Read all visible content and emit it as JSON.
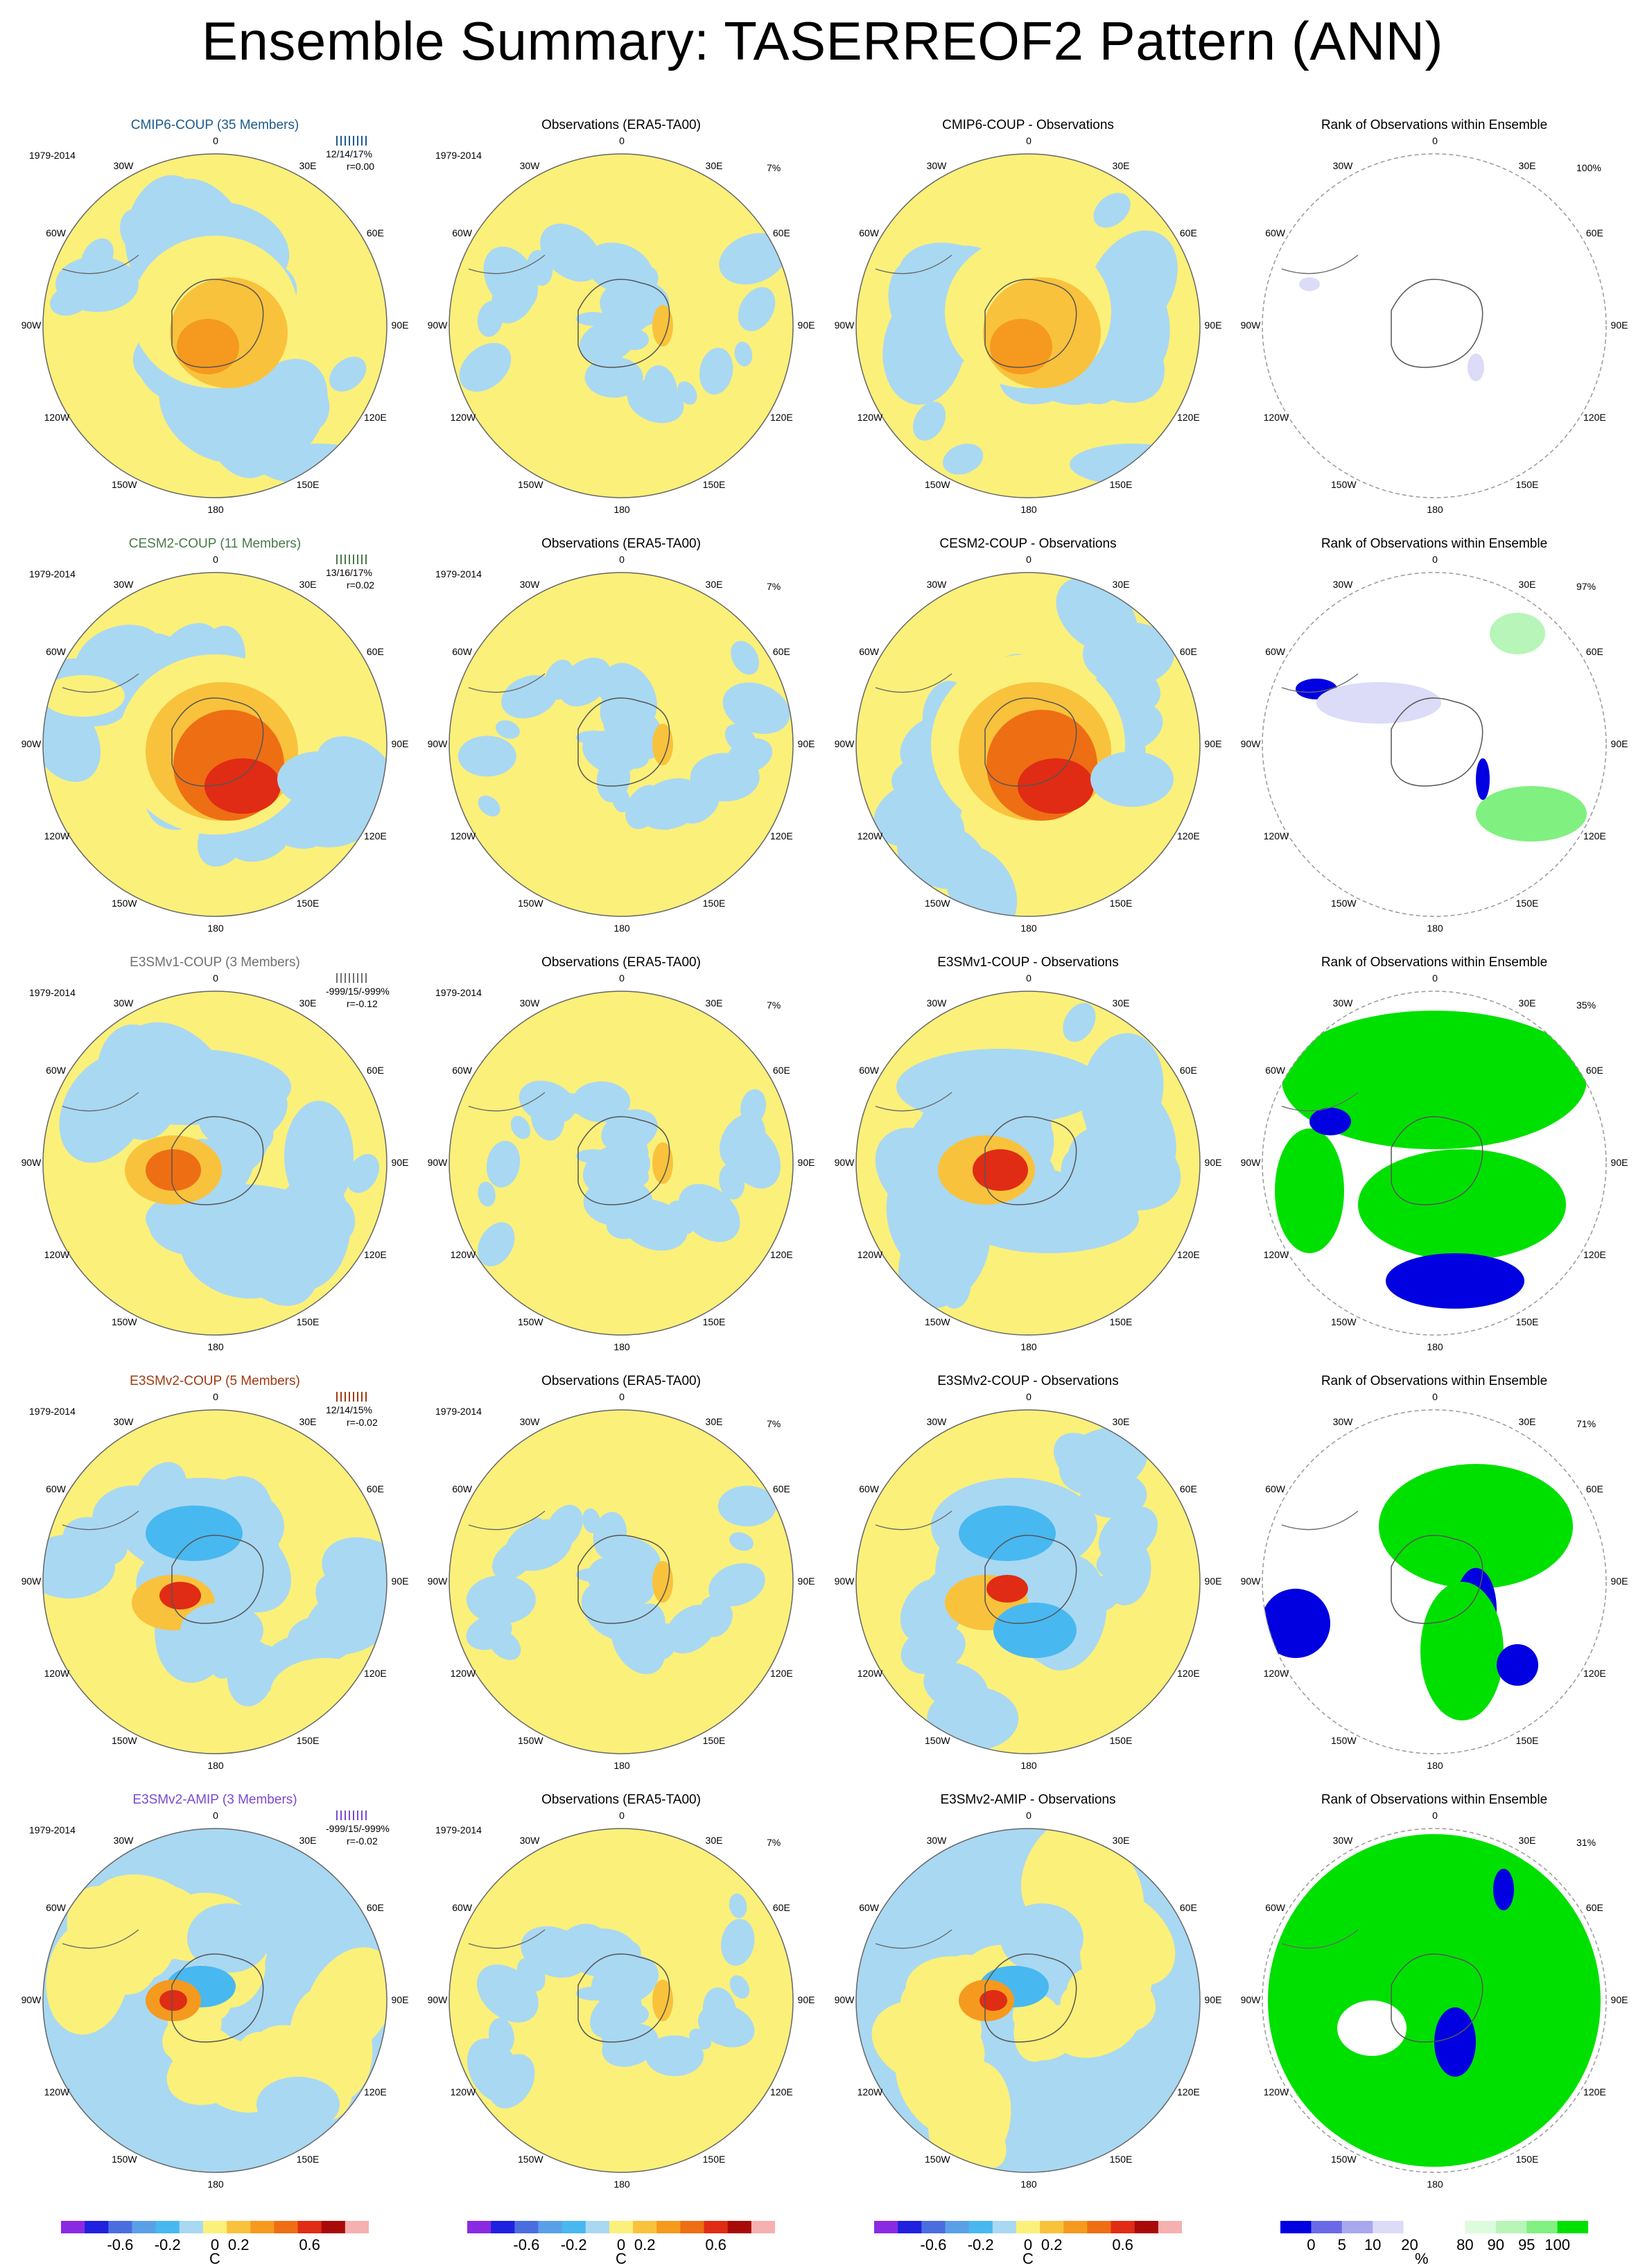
{
  "title": "Ensemble Summary: TASERREOF2 Pattern (ANN)",
  "colors": {
    "field_scale": [
      "#8a2be2",
      "#2020e0",
      "#4a6ee0",
      "#5aa0e8",
      "#48b8f0",
      "#a9d8f2",
      "#fbf07a",
      "#f9c23c",
      "#f59a1e",
      "#ee6e14",
      "#e02c14",
      "#a80a0a",
      "#f6b0b0"
    ],
    "rank_scale": [
      "#0000e0",
      "#6a6ae8",
      "#a8a8f0",
      "#dcdcf8",
      "#ffffff",
      "#ffffff",
      "#ddfbdd",
      "#b8f5b8",
      "#80f080",
      "#00e000"
    ],
    "title_cmip6": "#1e5a8a",
    "title_cesm2": "#4a7a4a",
    "title_e3smv1": "#707070",
    "title_e3smv2coup": "#a03a10",
    "title_e3smv2amip": "#7a4ad0"
  },
  "rows": [
    {
      "model_title": "CMIP6-COUP (35 Members)",
      "model_color_key": "title_cmip6",
      "period": "1979-2014",
      "stats": "12/14/17%",
      "corr": "r=0.00",
      "obs_title": "Observations (ERA5-TA00)",
      "obs_period": "1979-2014",
      "obs_pct": "7%",
      "diff_title": "CMIP6-COUP - Observations",
      "rank_title": "Rank of Observations within Ensemble",
      "rank_pct": "100%"
    },
    {
      "model_title": "CESM2-COUP (11 Members)",
      "model_color_key": "title_cesm2",
      "period": "1979-2014",
      "stats": "13/16/17%",
      "corr": "r=0.02",
      "obs_title": "Observations (ERA5-TA00)",
      "obs_period": "1979-2014",
      "obs_pct": "7%",
      "diff_title": "CESM2-COUP - Observations",
      "rank_title": "Rank of Observations within Ensemble",
      "rank_pct": "97%"
    },
    {
      "model_title": "E3SMv1-COUP (3 Members)",
      "model_color_key": "title_e3smv1",
      "period": "1979-2014",
      "stats": "-999/15/-999%",
      "corr": "r=-0.12",
      "obs_title": "Observations (ERA5-TA00)",
      "obs_period": "1979-2014",
      "obs_pct": "7%",
      "diff_title": "E3SMv1-COUP - Observations",
      "rank_title": "Rank of Observations within Ensemble",
      "rank_pct": "35%"
    },
    {
      "model_title": "E3SMv2-COUP (5 Members)",
      "model_color_key": "title_e3smv2coup",
      "period": "1979-2014",
      "stats": "12/14/15%",
      "corr": "r=-0.02",
      "obs_title": "Observations (ERA5-TA00)",
      "obs_period": "1979-2014",
      "obs_pct": "7%",
      "diff_title": "E3SMv2-COUP - Observations",
      "rank_title": "Rank of Observations within Ensemble",
      "rank_pct": "71%"
    },
    {
      "model_title": "E3SMv2-AMIP (3 Members)",
      "model_color_key": "title_e3smv2amip",
      "period": "1979-2014",
      "stats": "-999/15/-999%",
      "corr": "r=-0.02",
      "obs_title": "Observations (ERA5-TA00)",
      "obs_period": "1979-2014",
      "obs_pct": "7%",
      "diff_title": "E3SMv2-AMIP - Observations",
      "rank_title": "Rank of Observations within Ensemble",
      "rank_pct": "31%"
    }
  ],
  "lon_labels": [
    "0",
    "30E",
    "60E",
    "90E",
    "120E",
    "150E",
    "180",
    "150W",
    "120W",
    "90W",
    "60W",
    "30W"
  ],
  "field_colorbar": {
    "ticks": [
      "-0.6",
      "-0.2",
      "0",
      "0.2",
      "0.6"
    ],
    "unit": "C"
  },
  "rank_colorbar": {
    "ticks": [
      "0",
      "5",
      "10",
      "20",
      "80",
      "90",
      "95",
      "100"
    ],
    "unit": "%"
  },
  "chart_data": [
    {
      "type": "heatmap",
      "title": "Ensemble Summary: TASERREOF2 Pattern (ANN)",
      "projection": "south polar stereographic",
      "panels": 20,
      "field_colorbar_ticks": [
        -0.6,
        -0.2,
        0,
        0.2,
        0.6
      ],
      "field_unit": "C",
      "rank_colorbar_ticks": [
        0,
        5,
        10,
        20,
        80,
        90,
        95,
        100
      ],
      "rank_unit": "%",
      "rank_of_observations_pct": [
        100,
        97,
        35,
        71,
        31
      ]
    }
  ]
}
